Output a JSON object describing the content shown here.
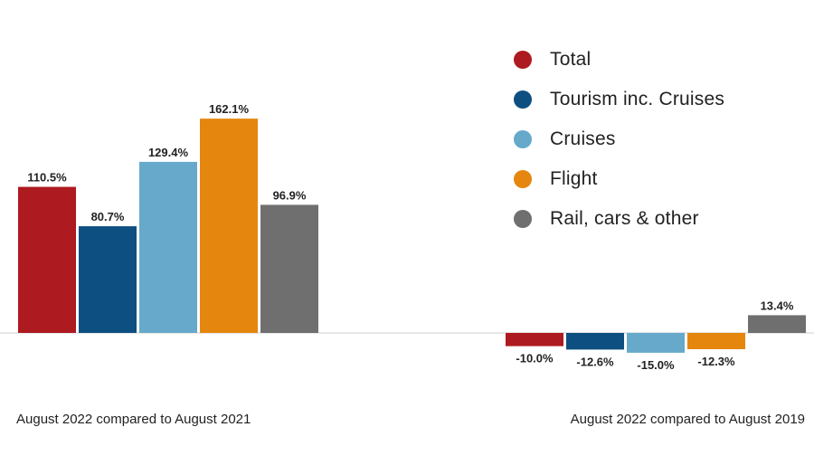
{
  "chart_data": {
    "type": "bar",
    "categories": [
      "August 2022 compared to August 2021",
      "August 2022 compared to August 2019"
    ],
    "series": [
      {
        "name": "Total",
        "color": "#ad1a1f",
        "values": [
          110.5,
          -10.0
        ],
        "labels": [
          "110.5%",
          "-10.0%"
        ]
      },
      {
        "name": "Tourism inc. Cruises",
        "color": "#0e4f81",
        "values": [
          80.7,
          -12.6
        ],
        "labels": [
          "80.7%",
          "-12.6%"
        ]
      },
      {
        "name": "Cruises",
        "color": "#66a9cb",
        "values": [
          129.4,
          -15.0
        ],
        "labels": [
          "129.4%",
          "-15.0%"
        ]
      },
      {
        "name": "Flight",
        "color": "#e5860f",
        "values": [
          162.1,
          -12.3
        ],
        "labels": [
          "162.1%",
          "-12.3%"
        ]
      },
      {
        "name": "Rail, cars & other",
        "color": "#6f6f6f",
        "values": [
          96.9,
          13.4
        ],
        "labels": [
          "96.9%",
          "13.4%"
        ]
      }
    ],
    "legend_position": "top-right",
    "grid": false,
    "baseline": 0
  }
}
